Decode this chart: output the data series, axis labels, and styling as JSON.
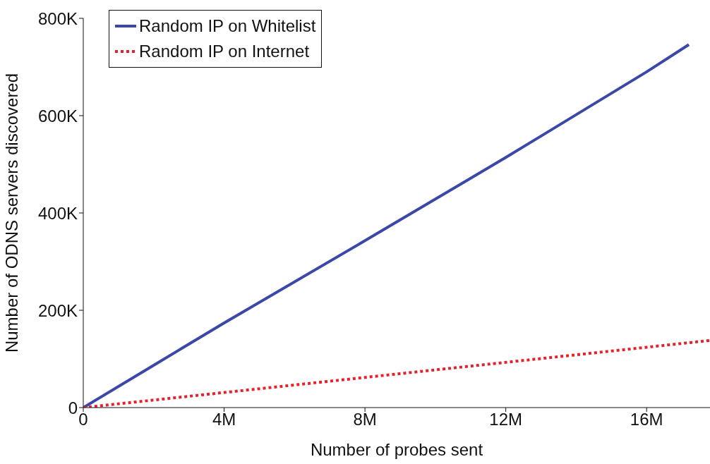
{
  "chart_data": {
    "type": "line",
    "xlabel": "Number of probes sent",
    "ylabel": "Number of ODNS servers discovered",
    "xlim": [
      0,
      17800000
    ],
    "ylim": [
      0,
      800000
    ],
    "xticks": [
      0,
      {
        "value": 4000000,
        "label": "4M"
      },
      {
        "value": 8000000,
        "label": "8M"
      },
      {
        "value": 12000000,
        "label": "12M"
      },
      {
        "value": 16000000,
        "label": "16M"
      }
    ],
    "yticks": [
      0,
      {
        "value": 200000,
        "label": "200K"
      },
      {
        "value": 400000,
        "label": "400K"
      },
      {
        "value": 600000,
        "label": "600K"
      },
      {
        "value": 800000,
        "label": "800K"
      }
    ],
    "grid": false,
    "legend": "top left",
    "marker": "none",
    "series": [
      {
        "name": "Random IP on Whitelist",
        "color": "#3a48a8",
        "line_style": "solid",
        "x": [
          0,
          2000000,
          4000000,
          8000000,
          12000000,
          16000000,
          17200000
        ],
        "values": [
          0,
          87000,
          174000,
          343000,
          514000,
          690000,
          746000
        ]
      },
      {
        "name": "Random IP on Internet",
        "color": "#e8202a",
        "line_style": "dotted",
        "x": [
          0,
          4000000,
          8000000,
          12000000,
          16000000,
          17800000
        ],
        "values": [
          0,
          31000,
          62000,
          93000,
          124000,
          138000
        ]
      }
    ]
  }
}
